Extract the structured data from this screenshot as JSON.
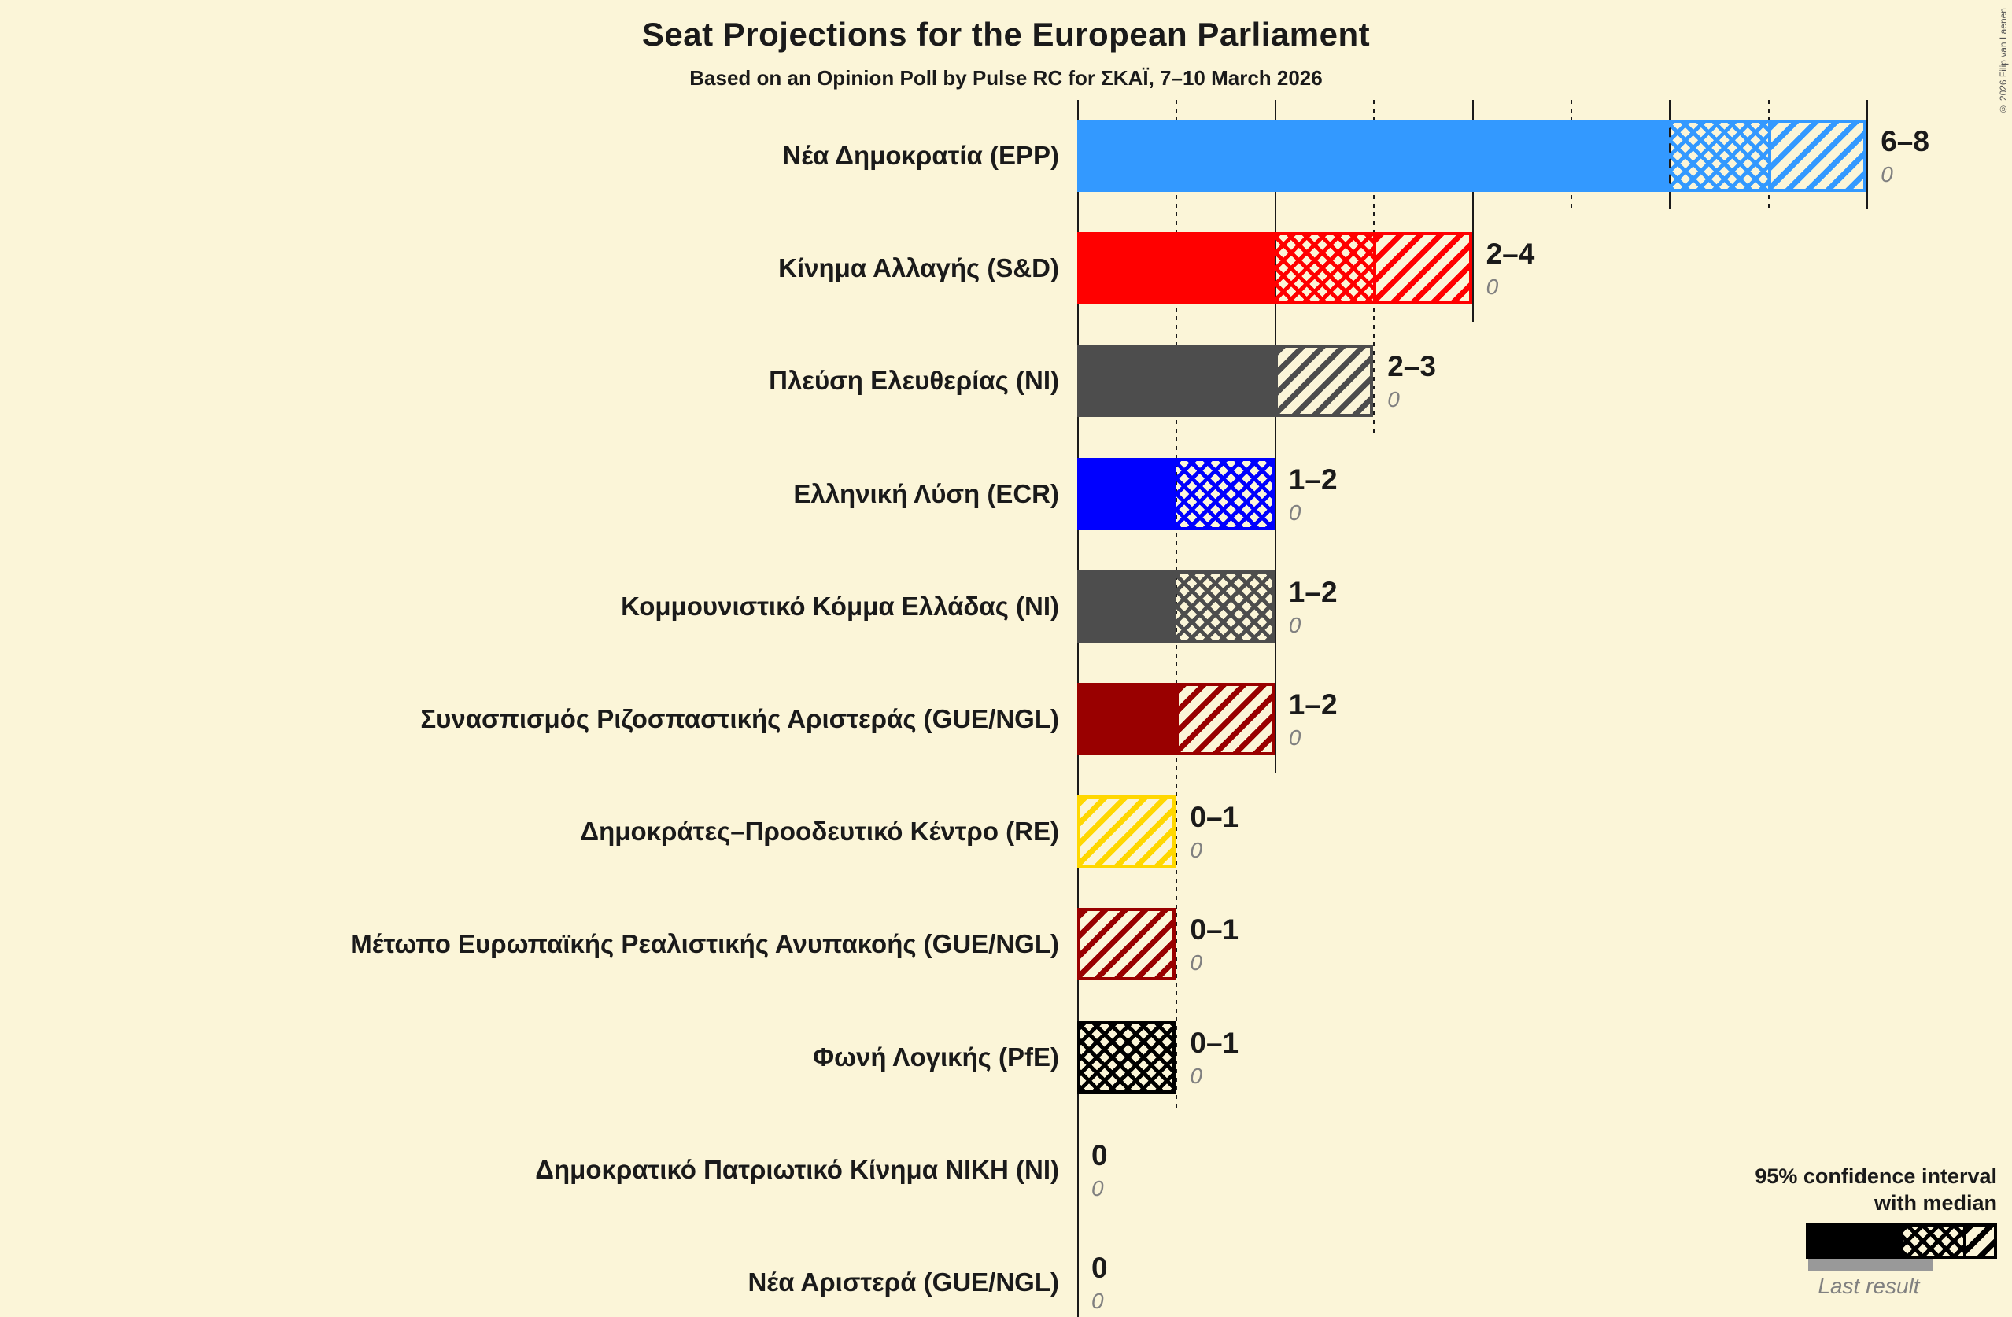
{
  "header": {
    "title": "Seat Projections for the European Parliament",
    "subtitle": "Based on an Opinion Poll by Pulse RC for ΣΚΑΪ, 7–10 March 2026",
    "copyright": "© 2026 Filip van Laenen"
  },
  "legend": {
    "line1": "95% confidence interval",
    "line2": "with median",
    "last_result_label": "Last result"
  },
  "chart_data": {
    "type": "bar",
    "title": "Seat Projections for the European Parliament",
    "subtitle": "Based on an Opinion Poll by Pulse RC for ΣΚΑΪ, 7–10 March 2026",
    "x_axis": {
      "min": 0,
      "max": 8,
      "solid_gridlines": [
        0,
        2,
        4,
        6,
        8
      ],
      "dotted_gridlines": [
        1,
        3,
        5,
        7
      ],
      "unit": "seats"
    },
    "background_color": "#FBF5D8",
    "parties": [
      {
        "label": "Νέα Δημοκρατία (EPP)",
        "color": "#3399FF",
        "ci_label": "6–8",
        "ci_low": 6,
        "median": 7,
        "ci_high": 8,
        "solid_seats": 6,
        "cross_seats": 1,
        "diag_seats": 1,
        "last_result": "0"
      },
      {
        "label": "Κίνημα Αλλαγής (S&D)",
        "color": "#FF0000",
        "ci_label": "2–4",
        "ci_low": 2,
        "median": 3,
        "ci_high": 4,
        "solid_seats": 2,
        "cross_seats": 1,
        "diag_seats": 1,
        "last_result": "0"
      },
      {
        "label": "Πλεύση Ελευθερίας (NI)",
        "color": "#4D4D4D",
        "ci_label": "2–3",
        "ci_low": 2,
        "median": 2,
        "ci_high": 3,
        "solid_seats": 2,
        "cross_seats": 0,
        "diag_seats": 1,
        "last_result": "0"
      },
      {
        "label": "Ελληνική Λύση (ECR)",
        "color": "#0000FF",
        "ci_label": "1–2",
        "ci_low": 1,
        "median": 2,
        "ci_high": 2,
        "solid_seats": 1,
        "cross_seats": 1,
        "diag_seats": 0,
        "last_result": "0"
      },
      {
        "label": "Κομμουνιστικό Κόμμα Ελλάδας (NI)",
        "color": "#4D4D4D",
        "ci_label": "1–2",
        "ci_low": 1,
        "median": 2,
        "ci_high": 2,
        "solid_seats": 1,
        "cross_seats": 1,
        "diag_seats": 0,
        "last_result": "0"
      },
      {
        "label": "Συνασπισμός Ριζοσπαστικής Αριστεράς (GUE/NGL)",
        "color": "#990000",
        "ci_label": "1–2",
        "ci_low": 1,
        "median": 1,
        "ci_high": 2,
        "solid_seats": 1,
        "cross_seats": 0,
        "diag_seats": 1,
        "last_result": "0"
      },
      {
        "label": "Δημοκράτες–Προοδευτικό Κέντρο (RE)",
        "color": "#FFD700",
        "ci_label": "0–1",
        "ci_low": 0,
        "median": 0,
        "ci_high": 1,
        "solid_seats": 0,
        "cross_seats": 0,
        "diag_seats": 1,
        "last_result": "0"
      },
      {
        "label": "Μέτωπο Ευρωπαϊκής Ρεαλιστικής Ανυπακοής (GUE/NGL)",
        "color": "#990000",
        "ci_label": "0–1",
        "ci_low": 0,
        "median": 0,
        "ci_high": 1,
        "solid_seats": 0,
        "cross_seats": 0,
        "diag_seats": 1,
        "last_result": "0"
      },
      {
        "label": "Φωνή Λογικής (PfE)",
        "color": "#000000",
        "ci_label": "0–1",
        "ci_low": 0,
        "median": 1,
        "ci_high": 1,
        "solid_seats": 0,
        "cross_seats": 1,
        "diag_seats": 0,
        "last_result": "0"
      },
      {
        "label": "Δημοκρατικό Πατριωτικό Κίνημα ΝΙΚΗ (NI)",
        "color": "#4D4D4D",
        "ci_label": "0",
        "ci_low": 0,
        "median": 0,
        "ci_high": 0,
        "solid_seats": 0,
        "cross_seats": 0,
        "diag_seats": 0,
        "last_result": "0"
      },
      {
        "label": "Νέα Αριστερά (GUE/NGL)",
        "color": "#990000",
        "ci_label": "0",
        "ci_low": 0,
        "median": 0,
        "ci_high": 0,
        "solid_seats": 0,
        "cross_seats": 0,
        "diag_seats": 0,
        "last_result": "0"
      }
    ],
    "legend": {
      "title": "95% confidence interval with median",
      "last_result": "Last result",
      "patterns": [
        "solid = below CI",
        "crosshatch = CI low to median",
        "diagonal = median to CI high"
      ]
    }
  }
}
